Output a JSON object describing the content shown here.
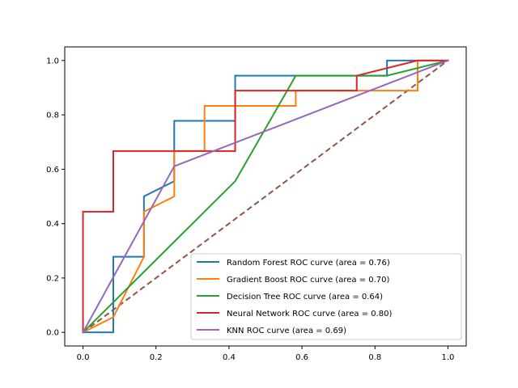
{
  "chart_data": {
    "type": "line",
    "title": "",
    "xlabel": "",
    "ylabel": "",
    "xlim": [
      -0.05,
      1.05
    ],
    "ylim": [
      -0.05,
      1.05
    ],
    "xticks": [
      "0.0",
      "0.2",
      "0.4",
      "0.6",
      "0.8",
      "1.0"
    ],
    "yticks": [
      "0.0",
      "0.2",
      "0.4",
      "0.6",
      "0.8",
      "1.0"
    ],
    "grid": false,
    "legend_position": "lower-right",
    "series": [
      {
        "name": "Random Forest ROC curve (area = 0.76)",
        "color": "#1f77b4",
        "x": [
          0,
          0.083,
          0.083,
          0.167,
          0.167,
          0.25,
          0.25,
          0.417,
          0.417,
          0.833,
          0.833,
          1
        ],
        "y": [
          0,
          0,
          0.278,
          0.278,
          0.5,
          0.556,
          0.778,
          0.778,
          0.944,
          0.944,
          1,
          1
        ]
      },
      {
        "name": "Gradient Boost ROC curve (area = 0.70)",
        "color": "#ff7f0e",
        "x": [
          0,
          0.083,
          0.167,
          0.167,
          0.25,
          0.25,
          0.333,
          0.333,
          0.583,
          0.583,
          0.917,
          0.917,
          1
        ],
        "y": [
          0,
          0.056,
          0.278,
          0.444,
          0.5,
          0.667,
          0.667,
          0.833,
          0.833,
          0.889,
          0.889,
          1,
          1
        ]
      },
      {
        "name": "Decision Tree ROC curve (area = 0.64)",
        "color": "#2ca02c",
        "x": [
          0,
          0.417,
          0.583,
          0.833,
          1
        ],
        "y": [
          0,
          0.556,
          0.944,
          0.944,
          1
        ]
      },
      {
        "name": "Neural Network ROC curve (area = 0.80)",
        "color": "#d62728",
        "x": [
          0,
          0,
          0.083,
          0.083,
          0.417,
          0.417,
          0.75,
          0.75,
          0.917,
          1
        ],
        "y": [
          0,
          0.444,
          0.444,
          0.667,
          0.667,
          0.889,
          0.889,
          0.944,
          1,
          1
        ]
      },
      {
        "name": "KNN ROC curve (area = 0.69)",
        "color": "#9467bd",
        "x": [
          0,
          0.25,
          1
        ],
        "y": [
          0,
          0.611,
          1
        ]
      }
    ],
    "reference_line": {
      "color": "#8c564b",
      "style": "dashed",
      "x": [
        0,
        1
      ],
      "y": [
        0,
        1
      ]
    }
  }
}
